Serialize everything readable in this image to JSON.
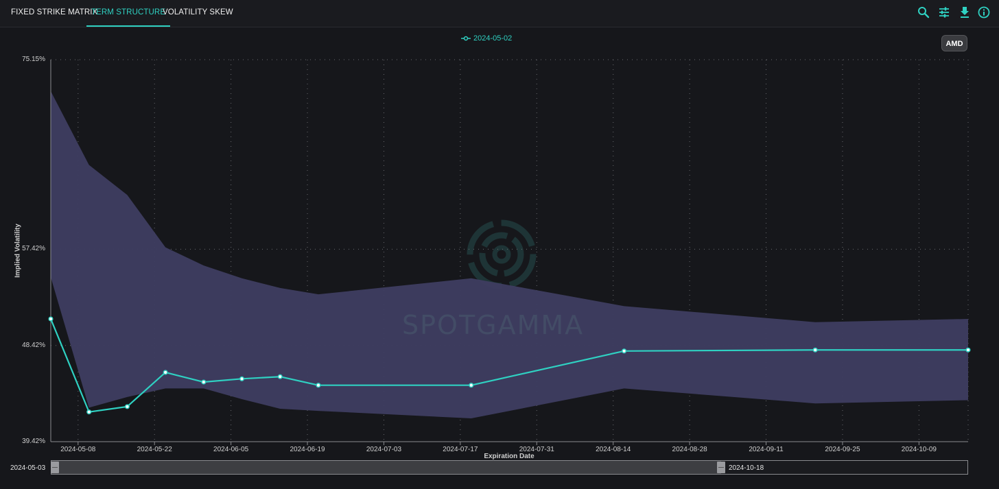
{
  "tabs": [
    {
      "label": "FIXED STRIKE MATRIX",
      "active": false
    },
    {
      "label": "TERM STRUCTURE",
      "active": true
    },
    {
      "label": "VOLATILITY SKEW",
      "active": false
    }
  ],
  "toolbar_icons": [
    "search-icon",
    "sliders-icon",
    "download-icon",
    "info-icon"
  ],
  "accent_color": "#2fd1c2",
  "band_color": "#3e3d60",
  "legend": {
    "series_label": "2024-05-02"
  },
  "ticker": {
    "label": "AMD"
  },
  "watermark": {
    "text": "SPOTGAMMA"
  },
  "range_selector": {
    "start": "2024-05-03",
    "end": "2024-10-18"
  },
  "chart_data": {
    "type": "line",
    "ylabel": "Implied Volatility",
    "xlabel": "Expiration Date",
    "ylim": [
      39.42,
      75.15
    ],
    "y_ticks": [
      "75.15%",
      "57.42%",
      "48.42%",
      "39.42%"
    ],
    "x_ticks": [
      "2024-05-08",
      "2024-05-22",
      "2024-06-05",
      "2024-06-19",
      "2024-07-03",
      "2024-07-17",
      "2024-07-31",
      "2024-08-14",
      "2024-08-28",
      "2024-09-11",
      "2024-09-25",
      "2024-10-09"
    ],
    "xlim": [
      "2024-05-03",
      "2024-10-18"
    ],
    "grid": true,
    "legend_position": "top-center",
    "series": [
      {
        "name": "2024-05-02",
        "x": [
          "2024-05-03",
          "2024-05-10",
          "2024-05-17",
          "2024-05-24",
          "2024-05-31",
          "2024-06-07",
          "2024-06-14",
          "2024-06-21",
          "2024-07-19",
          "2024-08-16",
          "2024-09-20",
          "2024-10-18"
        ],
        "values": [
          50.9,
          42.2,
          42.7,
          45.9,
          45.0,
          45.3,
          45.5,
          44.7,
          44.7,
          47.9,
          48.0,
          48.0
        ]
      }
    ],
    "band": {
      "x": [
        "2024-05-03",
        "2024-05-10",
        "2024-05-17",
        "2024-05-24",
        "2024-05-31",
        "2024-06-07",
        "2024-06-14",
        "2024-06-21",
        "2024-07-19",
        "2024-08-16",
        "2024-09-20",
        "2024-10-18"
      ],
      "upper": [
        72.2,
        65.3,
        62.5,
        57.6,
        55.9,
        54.7,
        53.8,
        53.2,
        54.7,
        52.1,
        50.6,
        50.9
      ],
      "lower": [
        54.8,
        42.6,
        43.6,
        44.4,
        44.4,
        43.4,
        42.5,
        42.3,
        41.6,
        44.4,
        43.0,
        43.3
      ]
    }
  }
}
